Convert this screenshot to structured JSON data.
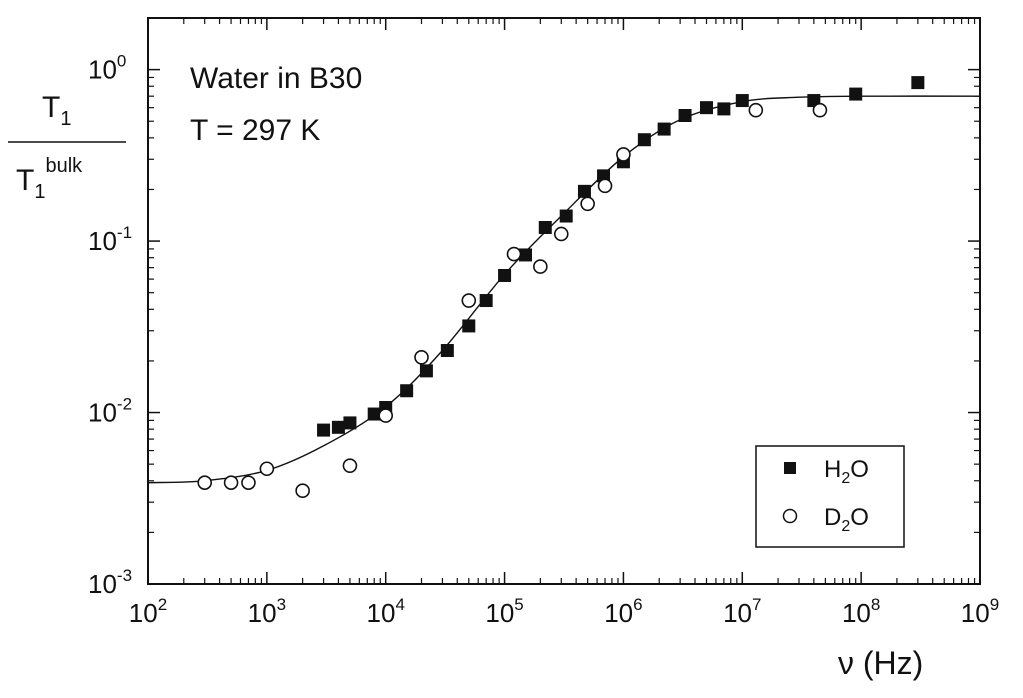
{
  "chart_data": {
    "type": "scatter",
    "xscale": "log",
    "yscale": "log",
    "xlim": [
      100,
      1000000000
    ],
    "ylim": [
      0.001,
      2
    ],
    "xlabel": "ν (Hz)",
    "ylabel": {
      "numerator": "T1",
      "denominator": "T1bulk"
    },
    "annotations": [
      "Water in B30",
      "T = 297 K"
    ],
    "legend_position": "bottom-right",
    "x_ticks": [
      {
        "base": "10",
        "exp": "2",
        "value": 100
      },
      {
        "base": "10",
        "exp": "3",
        "value": 1000
      },
      {
        "base": "10",
        "exp": "4",
        "value": 10000
      },
      {
        "base": "10",
        "exp": "5",
        "value": 100000
      },
      {
        "base": "10",
        "exp": "6",
        "value": 1000000
      },
      {
        "base": "10",
        "exp": "7",
        "value": 10000000
      },
      {
        "base": "10",
        "exp": "8",
        "value": 100000000
      },
      {
        "base": "10",
        "exp": "9",
        "value": 1000000000
      }
    ],
    "y_ticks": [
      {
        "base": "10",
        "exp": "0",
        "value": 1
      },
      {
        "base": "10",
        "exp": "-1",
        "value": 0.1
      },
      {
        "base": "10",
        "exp": "-2",
        "value": 0.01
      },
      {
        "base": "10",
        "exp": "-3",
        "value": 0.001
      }
    ],
    "series": [
      {
        "name": "H2O",
        "legend_label": {
          "pre": "H",
          "sub": "2",
          "post": "O"
        },
        "marker": "filled-square",
        "color": "#111111",
        "points": [
          [
            3000,
            0.0079
          ],
          [
            4000,
            0.0082
          ],
          [
            5000,
            0.0087
          ],
          [
            8000,
            0.0098
          ],
          [
            10000,
            0.0107
          ],
          [
            15000,
            0.0134
          ],
          [
            22000,
            0.0175
          ],
          [
            33000,
            0.023
          ],
          [
            50000,
            0.032
          ],
          [
            70000,
            0.045
          ],
          [
            100000,
            0.063
          ],
          [
            150000,
            0.083
          ],
          [
            220000,
            0.12
          ],
          [
            330000,
            0.14
          ],
          [
            470000,
            0.195
          ],
          [
            680000,
            0.24
          ],
          [
            1000000,
            0.29
          ],
          [
            1500000,
            0.39
          ],
          [
            2200000,
            0.45
          ],
          [
            3300000,
            0.54
          ],
          [
            5000000,
            0.6
          ],
          [
            7000000,
            0.59
          ],
          [
            10000000,
            0.66
          ],
          [
            40000000,
            0.66
          ],
          [
            90000000,
            0.72
          ],
          [
            300000000,
            0.84
          ]
        ]
      },
      {
        "name": "D2O",
        "legend_label": {
          "pre": "D",
          "sub": "2",
          "post": "O"
        },
        "marker": "open-circle",
        "color": "#111111",
        "points": [
          [
            300,
            0.0039
          ],
          [
            500,
            0.0039
          ],
          [
            700,
            0.0039
          ],
          [
            1000,
            0.0047
          ],
          [
            2000,
            0.0035
          ],
          [
            5000,
            0.0049
          ],
          [
            10000,
            0.0096
          ],
          [
            20000,
            0.021
          ],
          [
            50000,
            0.045
          ],
          [
            120000,
            0.084
          ],
          [
            200000,
            0.071
          ],
          [
            300000,
            0.11
          ],
          [
            500000,
            0.165
          ],
          [
            700000,
            0.21
          ],
          [
            1000000,
            0.32
          ],
          [
            13000000,
            0.58
          ],
          [
            45000000,
            0.58
          ]
        ]
      }
    ],
    "fit_curve": {
      "name": "fit",
      "points": [
        [
          100,
          0.0039
        ],
        [
          300,
          0.004
        ],
        [
          1000,
          0.0046
        ],
        [
          3000,
          0.0064
        ],
        [
          10000,
          0.0108
        ],
        [
          30000,
          0.023
        ],
        [
          100000,
          0.064
        ],
        [
          300000,
          0.14
        ],
        [
          1000000,
          0.31
        ],
        [
          3000000,
          0.51
        ],
        [
          10000000,
          0.65
        ],
        [
          30000000,
          0.69
        ],
        [
          100000000,
          0.7
        ],
        [
          1000000000,
          0.7
        ]
      ]
    }
  }
}
